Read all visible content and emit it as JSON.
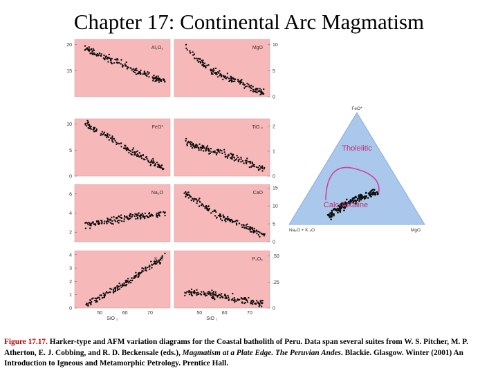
{
  "title": "Chapter 17: Continental Arc Magmatism",
  "caption": {
    "figure_label": "Figure 17.17.",
    "part1": " Harker-type and AFM variation diagrams for the Coastal batholith of Peru. Data span several suites from W. S. Pitcher, M. P. Atherton, E. J. Cobbing, and R. D. Beckensale (eds.), ",
    "italic": "Magmatism at a Plate Edge. The Peruvian Andes",
    "part2": ". Blackie. Glasgow. Winter (2001) An Introduction to Igneous and Metamorphic Petrology. Prentice Hall."
  },
  "colors": {
    "panel_bg": "#f6b8b8",
    "ternary_bg": "#a9c8eb",
    "curve": "#d2409c",
    "point": "#111111",
    "ternary_label": "#c0306e"
  },
  "chart_data": [
    {
      "type": "scatter",
      "panel": "Al2O3",
      "label": "Al₂O₃",
      "column": "left",
      "xlim": [
        40,
        78
      ],
      "ylim": [
        10,
        21
      ],
      "yticks": [
        15,
        20
      ],
      "trend": [
        [
          45,
          19.0
        ],
        [
          60,
          16.0
        ],
        [
          75,
          13.0
        ]
      ]
    },
    {
      "type": "scatter",
      "panel": "MgO",
      "label": "MgO",
      "column": "right",
      "xlim": [
        40,
        78
      ],
      "ylim": [
        0,
        11
      ],
      "yticks": [
        0,
        5,
        10
      ],
      "trend": [
        [
          45,
          9.0
        ],
        [
          55,
          5.0
        ],
        [
          75,
          0.8
        ]
      ]
    },
    {
      "type": "scatter",
      "panel": "FeO*",
      "label": "FeO*",
      "column": "left",
      "xlim": [
        40,
        78
      ],
      "ylim": [
        0,
        11
      ],
      "yticks": [
        0,
        5,
        10
      ],
      "trend": [
        [
          45,
          10.0
        ],
        [
          60,
          5.5
        ],
        [
          75,
          1.5
        ]
      ]
    },
    {
      "type": "scatter",
      "panel": "TiO2",
      "label": "TiO ₂",
      "column": "right",
      "xlim": [
        40,
        78
      ],
      "ylim": [
        0,
        2.3
      ],
      "yticks": [
        0,
        1,
        2
      ],
      "trend": [
        [
          45,
          1.3
        ],
        [
          60,
          0.9
        ],
        [
          75,
          0.3
        ]
      ]
    },
    {
      "type": "scatter",
      "panel": "Na2O",
      "label": "Na₂O",
      "column": "left",
      "xlim": [
        40,
        78
      ],
      "ylim": [
        1,
        7
      ],
      "yticks": [
        2,
        4,
        6
      ],
      "trend": [
        [
          45,
          2.8
        ],
        [
          60,
          3.5
        ],
        [
          75,
          3.9
        ]
      ]
    },
    {
      "type": "scatter",
      "panel": "CaO",
      "label": "CaO",
      "column": "right",
      "xlim": [
        40,
        78
      ],
      "ylim": [
        0,
        16
      ],
      "yticks": [
        0,
        5,
        10,
        15
      ],
      "trend": [
        [
          45,
          13.0
        ],
        [
          60,
          6.5
        ],
        [
          75,
          2.0
        ]
      ]
    },
    {
      "type": "scatter",
      "panel": "K2O",
      "label": "K₂O",
      "column": "left",
      "xlim": [
        40,
        78
      ],
      "ylim": [
        0,
        4.3
      ],
      "yticks": [
        0,
        1,
        2,
        3,
        4
      ],
      "trend": [
        [
          45,
          0.3
        ],
        [
          60,
          1.8
        ],
        [
          75,
          3.8
        ]
      ],
      "xticks": [
        50,
        60,
        70
      ],
      "xlabel": "SiO ₂"
    },
    {
      "type": "scatter",
      "panel": "P2O5",
      "label": "P₂O₅",
      "column": "right",
      "xlim": [
        40,
        78
      ],
      "ylim": [
        0,
        0.55
      ],
      "yticks": [
        0,
        0.25,
        0.5
      ],
      "trend": [
        [
          45,
          0.15
        ],
        [
          58,
          0.12
        ],
        [
          75,
          0.04
        ]
      ],
      "xticks": [
        50,
        60,
        70
      ],
      "xlabel": "SiO ₂"
    },
    {
      "type": "scatter",
      "panel": "AFM",
      "ternary": true,
      "vertices": {
        "top": "FeO*",
        "left": "Na₂O + K ₂O",
        "right": "MgO"
      },
      "field_labels": [
        "Tholeiitic",
        "Calc-Alkaline"
      ],
      "trend_AFM": [
        [
          0.75,
          0.15,
          0.1
        ],
        [
          0.4,
          0.45,
          0.15
        ],
        [
          0.2,
          0.6,
          0.2
        ],
        [
          0.12,
          0.62,
          0.26
        ]
      ]
    }
  ],
  "tick_text": {
    "Al2O3": [
      "15",
      "20"
    ],
    "MgO": [
      "0",
      "5",
      "10"
    ],
    "FeO*": [
      "0",
      "5",
      "10"
    ],
    "TiO2": [
      "0",
      "1",
      "2"
    ],
    "Na2O": [
      "2",
      "4",
      "6"
    ],
    "CaO": [
      "0",
      "5",
      "10",
      "15"
    ],
    "K2O": [
      "0",
      "1",
      "2",
      "3",
      "4"
    ],
    "P2O5": [
      "0",
      ".25",
      ".50"
    ],
    "x": [
      "50",
      "60",
      "70"
    ]
  }
}
